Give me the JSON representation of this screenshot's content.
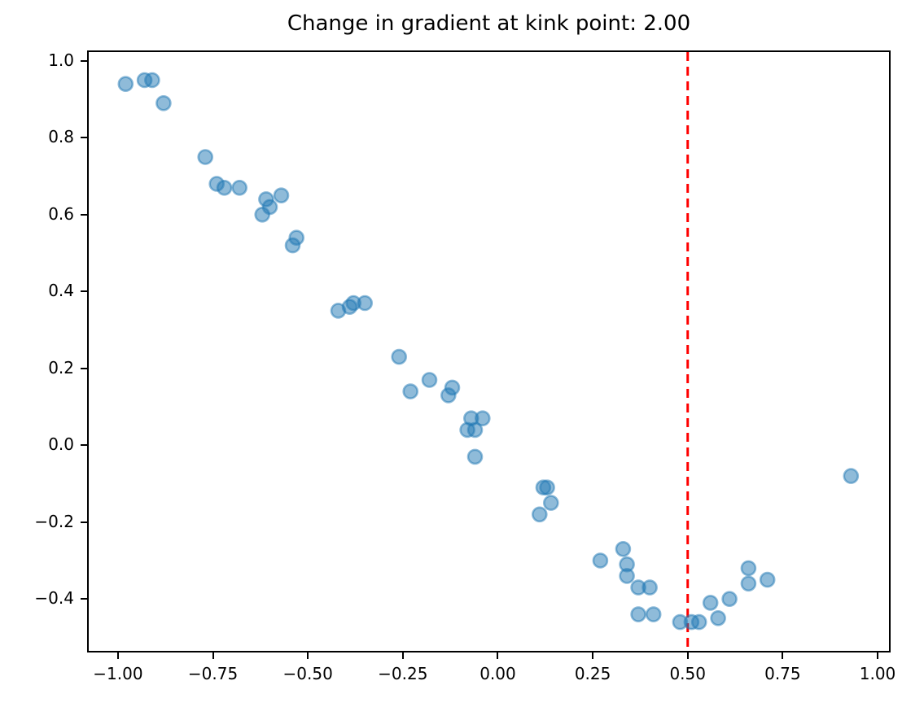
{
  "chart_data": {
    "type": "scatter",
    "title": "Change in gradient at kink point: 2.00",
    "xlabel": "",
    "ylabel": "",
    "grid": false,
    "legend": null,
    "xlim": [
      -1.077,
      1.03
    ],
    "ylim": [
      -0.535,
      1.023
    ],
    "x_ticks": {
      "values": [
        -1.0,
        -0.75,
        -0.5,
        -0.25,
        0.0,
        0.25,
        0.5,
        0.75,
        1.0
      ],
      "labels": [
        "−1.00",
        "−0.75",
        "−0.50",
        "−0.25",
        "0.00",
        "0.25",
        "0.50",
        "0.75",
        "1.00"
      ]
    },
    "y_ticks": {
      "values": [
        1.0,
        0.8,
        0.6,
        0.4,
        0.2,
        0.0,
        -0.2,
        -0.4
      ],
      "labels": [
        "1.0",
        "0.8",
        "0.6",
        "0.4",
        "0.2",
        "0.0",
        "−0.2",
        "−0.4"
      ]
    },
    "vline": {
      "x": 0.5,
      "color": "#ff0000",
      "style": "dashed"
    },
    "marker": {
      "base_color": "#1f77b4",
      "alpha": 0.5,
      "fill_appearance": "#8fbbdb",
      "edge_appearance": "#5795c7"
    },
    "points": [
      [
        -0.98,
        0.94
      ],
      [
        -0.93,
        0.95
      ],
      [
        -0.91,
        0.95
      ],
      [
        -0.88,
        0.89
      ],
      [
        -0.77,
        0.75
      ],
      [
        -0.74,
        0.68
      ],
      [
        -0.72,
        0.67
      ],
      [
        -0.68,
        0.67
      ],
      [
        -0.62,
        0.6
      ],
      [
        -0.61,
        0.64
      ],
      [
        -0.6,
        0.62
      ],
      [
        -0.57,
        0.65
      ],
      [
        -0.54,
        0.52
      ],
      [
        -0.53,
        0.54
      ],
      [
        -0.42,
        0.35
      ],
      [
        -0.39,
        0.36
      ],
      [
        -0.38,
        0.37
      ],
      [
        -0.35,
        0.37
      ],
      [
        -0.26,
        0.23
      ],
      [
        -0.23,
        0.14
      ],
      [
        -0.18,
        0.17
      ],
      [
        -0.13,
        0.13
      ],
      [
        -0.12,
        0.15
      ],
      [
        -0.08,
        0.04
      ],
      [
        -0.07,
        0.07
      ],
      [
        -0.06,
        0.04
      ],
      [
        -0.04,
        0.07
      ],
      [
        -0.06,
        -0.03
      ],
      [
        0.12,
        -0.11
      ],
      [
        0.13,
        -0.11
      ],
      [
        0.14,
        -0.15
      ],
      [
        0.11,
        -0.18
      ],
      [
        0.27,
        -0.3
      ],
      [
        0.33,
        -0.27
      ],
      [
        0.34,
        -0.31
      ],
      [
        0.34,
        -0.34
      ],
      [
        0.37,
        -0.37
      ],
      [
        0.4,
        -0.37
      ],
      [
        0.37,
        -0.44
      ],
      [
        0.41,
        -0.44
      ],
      [
        0.48,
        -0.46
      ],
      [
        0.51,
        -0.46
      ],
      [
        0.53,
        -0.46
      ],
      [
        0.56,
        -0.41
      ],
      [
        0.58,
        -0.45
      ],
      [
        0.61,
        -0.4
      ],
      [
        0.66,
        -0.32
      ],
      [
        0.66,
        -0.36
      ],
      [
        0.71,
        -0.35
      ],
      [
        0.93,
        -0.08
      ]
    ]
  }
}
